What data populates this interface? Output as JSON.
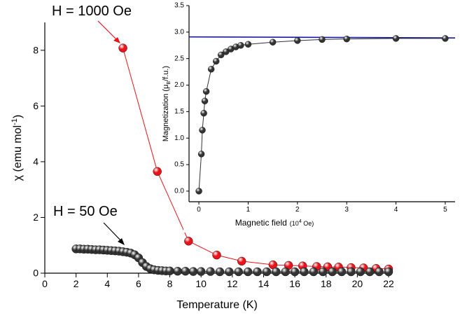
{
  "chart_data": [
    {
      "type": "scatter",
      "xlabel": "Temperature (K)",
      "ylabel": [
        "χ (emu mol",
        "-1",
        ")"
      ],
      "xlim": [
        0,
        22
      ],
      "ylim": [
        0,
        9
      ],
      "xticks": [
        0,
        2,
        4,
        6,
        8,
        10,
        12,
        14,
        16,
        18,
        20,
        22
      ],
      "yticks": [
        0,
        2,
        4,
        6,
        8
      ],
      "annotations": [
        {
          "text": "H = 1000 Oe",
          "color": "#e8141b"
        },
        {
          "text": "H = 50 Oe",
          "color": "#000000"
        }
      ],
      "series": [
        {
          "color": "#e8141b",
          "markers": true,
          "x": [
            5,
            7.2,
            9.2,
            11,
            12.6,
            14.6,
            15.6,
            16.5,
            17.4,
            18.1,
            18.8,
            19.6,
            20.4,
            21.2,
            22
          ],
          "values": [
            8.08,
            3.65,
            1.15,
            0.65,
            0.43,
            0.3,
            0.28,
            0.26,
            0.24,
            0.23,
            0.22,
            0.2,
            0.19,
            0.17,
            0.15
          ]
        },
        {
          "color": "#333333",
          "markers": true,
          "x": [
            2,
            2.25,
            2.5,
            2.75,
            3,
            3.25,
            3.5,
            3.75,
            4,
            4.25,
            4.5,
            4.75,
            5,
            5.25,
            5.5,
            5.75,
            6,
            6.25,
            6.5,
            6.75,
            7,
            7.25,
            7.5,
            7.75,
            8,
            8.5,
            9,
            9.5,
            10,
            10.6,
            11.2,
            11.8,
            12.4,
            13,
            13.6,
            14.2,
            14.8,
            15.4,
            16,
            16.6,
            17.2,
            17.8,
            18.4,
            19,
            19.6,
            20.2,
            20.8,
            21.4,
            22
          ],
          "values": [
            0.87,
            0.87,
            0.86,
            0.86,
            0.85,
            0.84,
            0.84,
            0.83,
            0.82,
            0.81,
            0.8,
            0.79,
            0.77,
            0.75,
            0.72,
            0.66,
            0.55,
            0.38,
            0.24,
            0.16,
            0.12,
            0.1,
            0.09,
            0.08,
            0.08,
            0.07,
            0.07,
            0.06,
            0.06,
            0.06,
            0.05,
            0.05,
            0.05,
            0.05,
            0.05,
            0.05,
            0.05,
            0.05,
            0.05,
            0.05,
            0.05,
            0.05,
            0.05,
            0.05,
            0.05,
            0.05,
            0.05,
            0.05,
            0.05
          ]
        }
      ]
    },
    {
      "type": "scatter",
      "xlabel": [
        "Magnetic field",
        "(10",
        "4",
        " Oe)"
      ],
      "ylabel": [
        "Magnetization (μ",
        "B",
        "/f.u.)"
      ],
      "xlim": [
        -0.2,
        5.2
      ],
      "ylim": [
        -0.2,
        3.5
      ],
      "xticks": [
        0,
        1,
        2,
        3,
        4,
        5
      ],
      "yticks": [
        {
          "value": 0,
          "label": "0.0"
        },
        0.5,
        {
          "value": 1,
          "label": "1.0"
        },
        1.5,
        {
          "value": 2,
          "label": "2.0"
        },
        2.5,
        {
          "value": 3,
          "label": "3.0"
        },
        3.5
      ],
      "series": [
        {
          "color": "#1a1aa6",
          "markers": false,
          "x": [
            -0.2,
            5.2
          ],
          "values": [
            2.91,
            2.89
          ]
        },
        {
          "color": "#333333",
          "markers": true,
          "x": [
            0,
            0.05,
            0.07,
            0.1,
            0.12,
            0.15,
            0.25,
            0.35,
            0.45,
            0.55,
            0.65,
            0.75,
            0.85,
            1,
            1.5,
            2,
            2.5,
            3,
            4,
            5
          ],
          "values": [
            0,
            0.7,
            1.15,
            1.47,
            1.7,
            1.88,
            2.3,
            2.45,
            2.57,
            2.63,
            2.68,
            2.72,
            2.75,
            2.77,
            2.81,
            2.84,
            2.86,
            2.87,
            2.88,
            2.88
          ]
        }
      ]
    }
  ]
}
